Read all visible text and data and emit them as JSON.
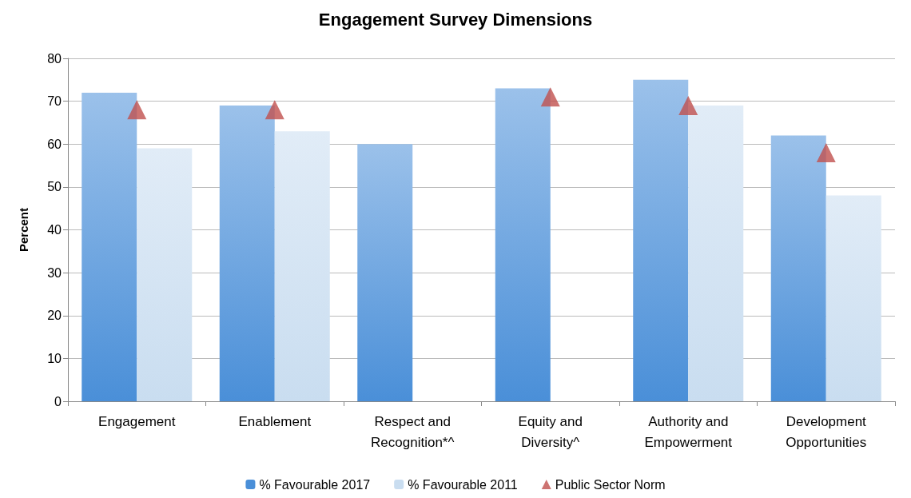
{
  "chart_data": {
    "type": "bar",
    "title": "Engagement Survey Dimensions",
    "ylabel": "Percent",
    "categories": [
      "Engagement",
      "Enablement",
      "Respect and\nRecognition*^",
      "Equity and\nDiversity^",
      "Authority and\nEmpowerment",
      "Development\nOpportunities"
    ],
    "series": [
      {
        "name": "% Favourable 2017",
        "color": "#4a8fd8",
        "values": [
          72,
          69,
          60,
          73,
          75,
          62
        ]
      },
      {
        "name": "% Favourable 2011",
        "color": "#c9ddf0",
        "values": [
          59,
          63,
          null,
          null,
          69,
          48
        ]
      },
      {
        "name": "Public Sector Norm",
        "type": "scatter",
        "marker": "triangle",
        "color": "#c0504d",
        "x": [
          "Engagement",
          "Enablement",
          "Respect and\nRecognition*^",
          "Equity and\nDiversity^",
          "Authority and\nEmpowerment",
          "Development\nOpportunities"
        ],
        "values": [
          68,
          68,
          null,
          71,
          69,
          58
        ]
      }
    ],
    "ylim": [
      0,
      80
    ],
    "yticks": [
      0,
      10,
      20,
      30,
      40,
      50,
      60,
      70,
      80
    ],
    "grid": "y",
    "legend": "bottom"
  }
}
